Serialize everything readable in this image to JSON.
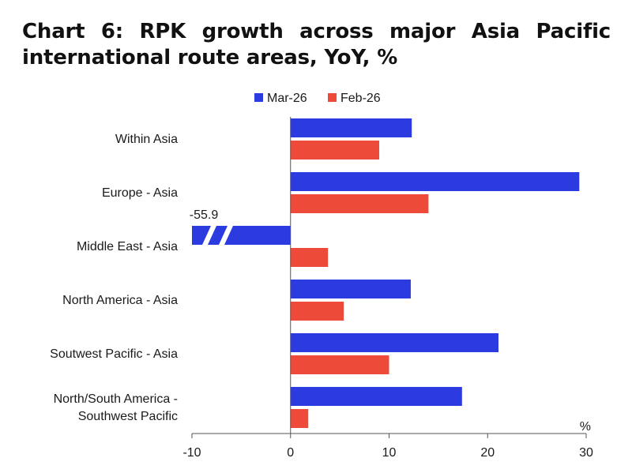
{
  "title": "Chart 6: RPK growth across major Asia Pacific international route areas, YoY, %",
  "chart_data": {
    "type": "bar",
    "orientation": "horizontal",
    "title": "Chart 6: RPK growth across major Asia Pacific international route areas, YoY, %",
    "unit_label": "%",
    "categories": [
      [
        "Within Asia"
      ],
      [
        "Europe - Asia"
      ],
      [
        "Middle East - Asia"
      ],
      [
        "North America - Asia"
      ],
      [
        "Soutwest Pacific - Asia"
      ],
      [
        "North/South America -",
        "Southwest Pacific"
      ]
    ],
    "series": [
      {
        "name": "Mar-26",
        "color": "#2b3be0",
        "values": [
          12.3,
          29.3,
          -55.9,
          12.2,
          21.1,
          17.4
        ]
      },
      {
        "name": "Feb-26",
        "color": "#ee4a3a",
        "values": [
          9.0,
          14.0,
          3.8,
          5.4,
          10.0,
          1.8
        ]
      }
    ],
    "axis_range": [
      -10,
      30
    ],
    "x_ticks": [
      -10,
      0,
      10,
      20,
      30
    ],
    "x_tick_labels": [
      "-10",
      "0",
      "10",
      "20",
      "30"
    ],
    "truncated_bar_annotation": "-55.9",
    "legend_position": "top",
    "grid": false
  }
}
